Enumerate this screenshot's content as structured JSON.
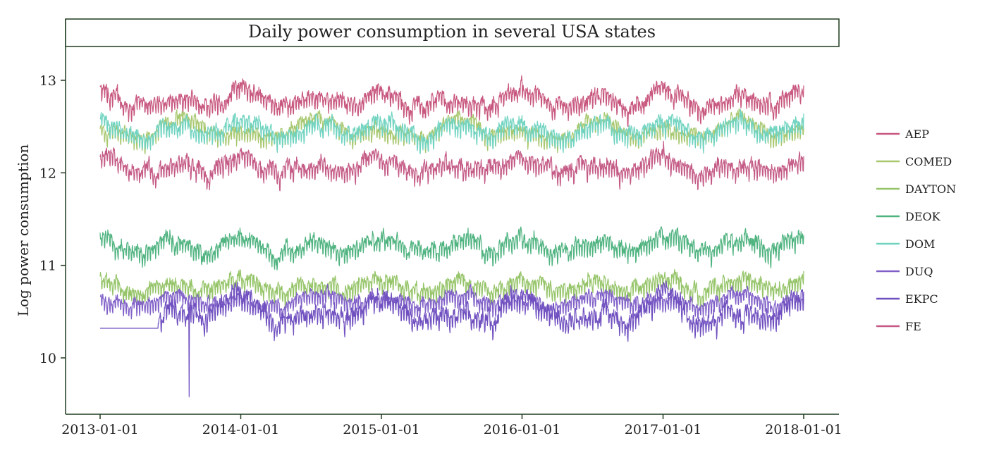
{
  "chart_data": {
    "type": "line",
    "title": "Daily power consumption in several USA states",
    "xlabel": "",
    "ylabel": "Log power consumption",
    "x_range": [
      "2013-01-01",
      "2018-01-01"
    ],
    "x_ticks": [
      "2013-01-01",
      "2014-01-01",
      "2015-01-01",
      "2016-01-01",
      "2017-01-01",
      "2018-01-01"
    ],
    "ylim": [
      9.4,
      13.4
    ],
    "y_ticks": [
      10,
      11,
      12,
      13
    ],
    "grid": false,
    "legend_position": "right",
    "series": [
      {
        "name": "AEP",
        "color": "#c8577f",
        "mean": 12.78,
        "winter_amp": 0.17,
        "summer_amp": 0.09,
        "noise": 0.08
      },
      {
        "name": "COMED",
        "color": "#a8c870",
        "mean": 12.45,
        "winter_amp": 0.06,
        "summer_amp": 0.22,
        "noise": 0.06
      },
      {
        "name": "DAYTON",
        "color": "#95c468",
        "mean": 10.78,
        "winter_amp": 0.12,
        "summer_amp": 0.1,
        "noise": 0.07
      },
      {
        "name": "DEOK",
        "color": "#4fb380",
        "mean": 11.2,
        "winter_amp": 0.15,
        "summer_amp": 0.13,
        "noise": 0.08
      },
      {
        "name": "DOM",
        "color": "#6fd3c0",
        "mean": 12.45,
        "winter_amp": 0.17,
        "summer_amp": 0.15,
        "noise": 0.07
      },
      {
        "name": "DUQ",
        "color": "#8060c8",
        "mean": 10.63,
        "winter_amp": 0.05,
        "summer_amp": 0.12,
        "noise": 0.06
      },
      {
        "name": "EKPC",
        "color": "#7050c0",
        "mean": 10.45,
        "winter_amp": 0.3,
        "summer_amp": 0.1,
        "noise": 0.1,
        "flat_value": 10.32,
        "flat_until": "2013-06-01",
        "dip_date": "2013-08-20",
        "dip_value": 9.58
      },
      {
        "name": "FE",
        "color": "#c45a85",
        "mean": 12.07,
        "winter_amp": 0.15,
        "summer_amp": 0.09,
        "noise": 0.08
      }
    ]
  }
}
